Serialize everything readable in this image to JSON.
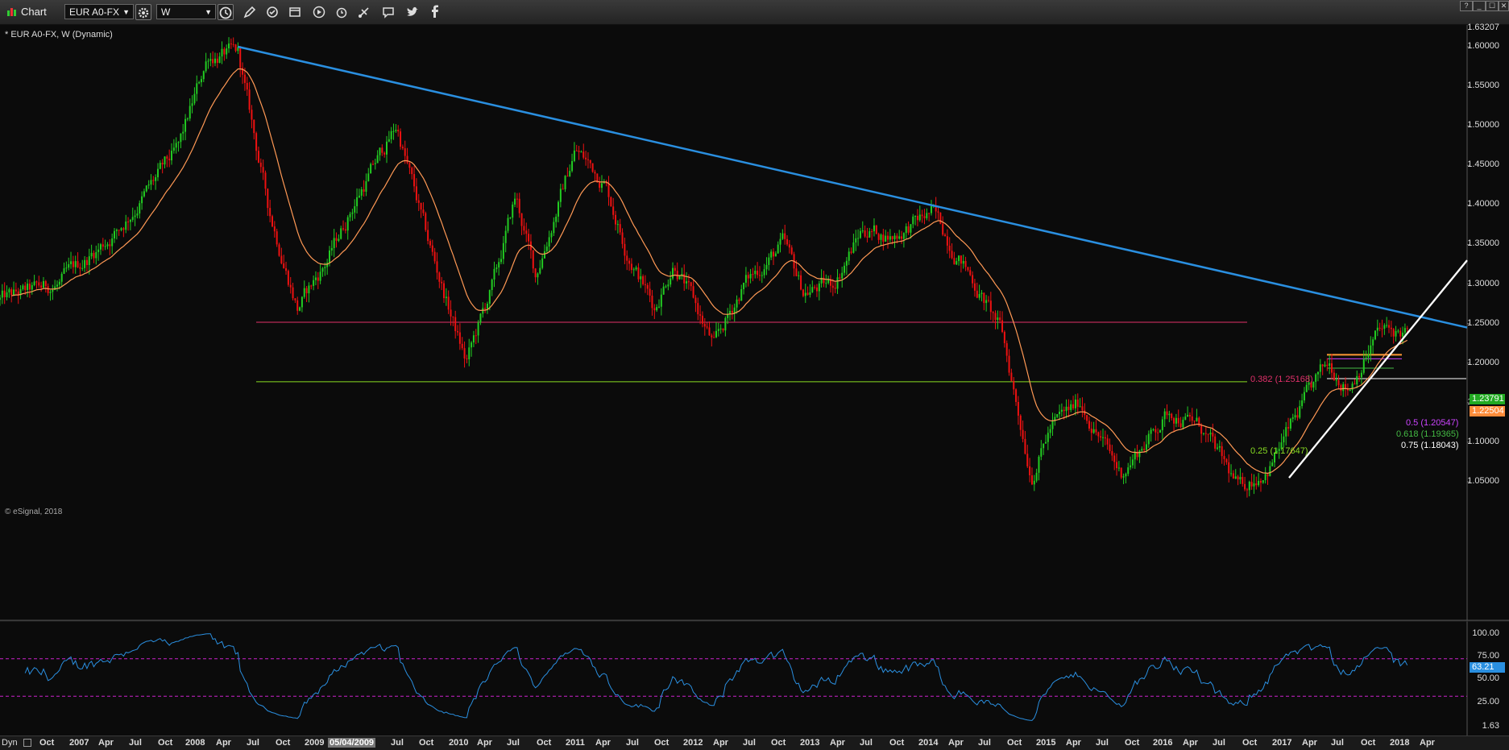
{
  "toolbar": {
    "title": "Chart",
    "symbol": "EUR A0-FX",
    "interval": "W",
    "window_buttons": [
      "?",
      "_",
      "☐",
      "✕"
    ]
  },
  "chart_header": {
    "description": "* EUR A0-FX, W (Dynamic)",
    "copyright": "© eSignal, 2018"
  },
  "price_axis": {
    "top_value": "1.63207",
    "ticks": [
      "1.60000",
      "1.55000",
      "1.50000",
      "1.45000",
      "1.40000",
      "1.35000",
      "1.30000",
      "1.25000",
      "1.20000",
      "1.15000",
      "1.10000",
      "1.05000"
    ],
    "last_price_tag": "1.23791",
    "ma_tag": "1.22504"
  },
  "oscillator_axis": {
    "ticks": [
      "100.00",
      "75.00",
      "50.00",
      "25.00"
    ],
    "value_tag": "63.21",
    "bottom_value": "1.63"
  },
  "fib_labels": {
    "f382": "0.382 (1.25168)",
    "f25": "0.25 (1.17647)",
    "f5": "0.5 (1.20547)",
    "f618": "0.618 (1.19365)",
    "f75": "0.75 (1.18043)"
  },
  "time_axis": {
    "left_label": "Dyn",
    "highlight": "05/04/2009",
    "labels": [
      "Oct",
      "2007",
      "Apr",
      "Jul",
      "Oct",
      "2008",
      "Apr",
      "Jul",
      "Oct",
      "2009",
      "Jul",
      "Oct",
      "2010",
      "Apr",
      "Jul",
      "Oct",
      "2011",
      "Apr",
      "Jul",
      "Oct",
      "2012",
      "Apr",
      "Jul",
      "Oct",
      "2013",
      "Apr",
      "Jul",
      "Oct",
      "2014",
      "Apr",
      "Jul",
      "Oct",
      "2015",
      "Apr",
      "Jul",
      "Oct",
      "2016",
      "Apr",
      "Jul",
      "Oct",
      "2017",
      "Apr",
      "Jul",
      "Oct",
      "2018",
      "Apr"
    ]
  },
  "colors": {
    "background": "#0b0b0b",
    "up_candle": "#22cc22",
    "down_candle": "#ee1111",
    "moving_average": "#ff9955",
    "downtrend_line": "#2a8fe0",
    "uptrend_line": "#ffffff",
    "fib_382": "#e0306a",
    "fib_25": "#88dd22",
    "oscillator": "#2a8fe0",
    "oscillator_bands": "#cc22cc"
  },
  "chart_data": [
    {
      "type": "candlestick",
      "instrument": "EUR A0-FX",
      "interval": "W",
      "y_range": [
        1.03,
        1.63207
      ],
      "x_range": [
        "2006-07",
        "2018-06"
      ],
      "key_points": [
        {
          "date": "2006-07",
          "close": 1.28
        },
        {
          "date": "2007-01",
          "close": 1.3
        },
        {
          "date": "2007-07",
          "close": 1.37
        },
        {
          "date": "2008-01",
          "close": 1.47
        },
        {
          "date": "2008-04",
          "close": 1.59
        },
        {
          "date": "2008-07",
          "close": 1.59
        },
        {
          "date": "2008-10",
          "close": 1.4
        },
        {
          "date": "2009-01",
          "close": 1.27
        },
        {
          "date": "2009-04",
          "close": 1.33
        },
        {
          "date": "2009-07",
          "close": 1.41
        },
        {
          "date": "2009-11",
          "close": 1.5
        },
        {
          "date": "2010-02",
          "close": 1.36
        },
        {
          "date": "2010-06",
          "close": 1.2
        },
        {
          "date": "2010-09",
          "close": 1.31
        },
        {
          "date": "2010-11",
          "close": 1.41
        },
        {
          "date": "2011-01",
          "close": 1.31
        },
        {
          "date": "2011-05",
          "close": 1.47
        },
        {
          "date": "2011-08",
          "close": 1.43
        },
        {
          "date": "2011-10",
          "close": 1.35
        },
        {
          "date": "2012-01",
          "close": 1.27
        },
        {
          "date": "2012-03",
          "close": 1.33
        },
        {
          "date": "2012-07",
          "close": 1.22
        },
        {
          "date": "2012-10",
          "close": 1.3
        },
        {
          "date": "2013-02",
          "close": 1.35
        },
        {
          "date": "2013-04",
          "close": 1.29
        },
        {
          "date": "2013-07",
          "close": 1.3
        },
        {
          "date": "2013-10",
          "close": 1.37
        },
        {
          "date": "2014-01",
          "close": 1.36
        },
        {
          "date": "2014-05",
          "close": 1.39
        },
        {
          "date": "2014-08",
          "close": 1.33
        },
        {
          "date": "2014-12",
          "close": 1.24
        },
        {
          "date": "2015-03",
          "close": 1.06
        },
        {
          "date": "2015-05",
          "close": 1.12
        },
        {
          "date": "2015-08",
          "close": 1.15
        },
        {
          "date": "2015-12",
          "close": 1.06
        },
        {
          "date": "2016-05",
          "close": 1.14
        },
        {
          "date": "2016-08",
          "close": 1.12
        },
        {
          "date": "2016-12",
          "close": 1.04
        },
        {
          "date": "2017-03",
          "close": 1.07
        },
        {
          "date": "2017-07",
          "close": 1.16
        },
        {
          "date": "2017-09",
          "close": 1.2
        },
        {
          "date": "2017-11",
          "close": 1.17
        },
        {
          "date": "2018-02",
          "close": 1.24
        },
        {
          "date": "2018-05",
          "close": 1.23791
        }
      ],
      "lines": {
        "downtrend": [
          {
            "date": "2008-07",
            "price": 1.6
          },
          {
            "date": "2018-06",
            "price": 1.245
          }
        ],
        "uptrend": [
          {
            "date": "2017-01",
            "price": 1.05
          },
          {
            "date": "2018-06",
            "price": 1.32
          }
        ],
        "fib_382": 1.25168,
        "fib_25": 1.17647,
        "fib_5": 1.20547,
        "fib_618": 1.19365,
        "fib_75": 1.18043
      }
    },
    {
      "type": "line",
      "y_range": [
        0,
        100
      ],
      "bands": [
        70,
        30
      ],
      "last_value": 63.21
    }
  ]
}
